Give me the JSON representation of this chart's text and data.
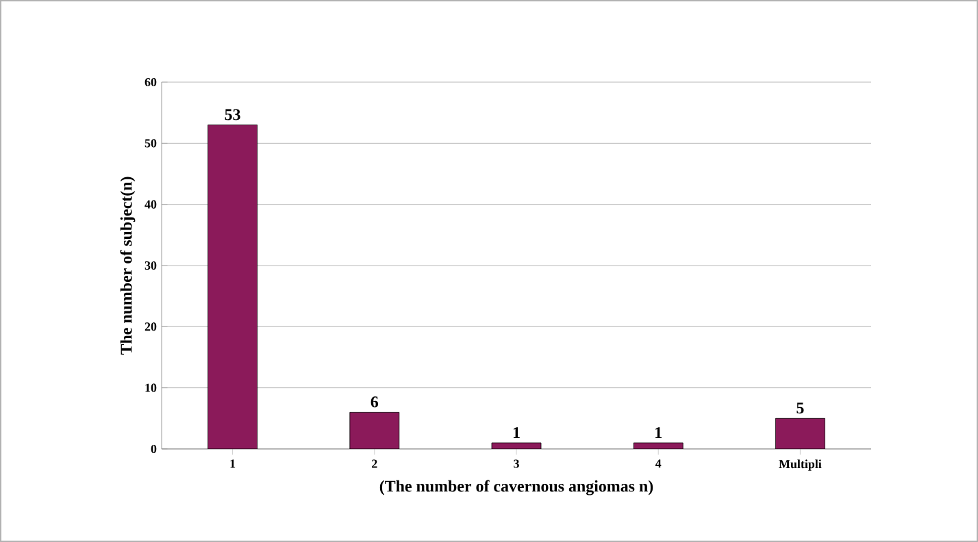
{
  "chart_data": {
    "type": "bar",
    "xlabel": "(The number of cavernous angiomas n)",
    "ylabel": "The number of subject(n)",
    "categories": [
      "1",
      "2",
      "3",
      "4",
      "Multipli"
    ],
    "values": [
      53,
      6,
      1,
      1,
      5
    ],
    "color": "#8b1a5a",
    "ylim": [
      0,
      60
    ],
    "yticks": [
      0,
      10,
      20,
      30,
      40,
      50,
      60
    ],
    "grid": "y",
    "data_labels": true
  }
}
